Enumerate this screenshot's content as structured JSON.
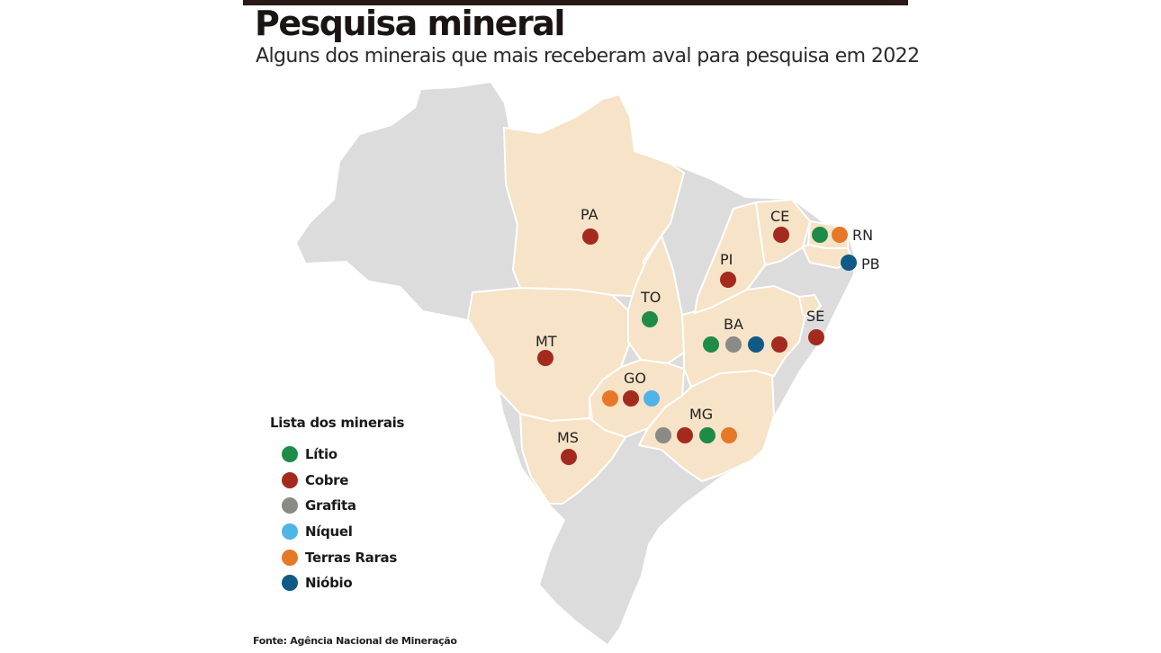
{
  "header": {
    "title": "Pesquisa mineral",
    "subtitle": "Alguns dos minerais que mais receberam aval para pesquisa em 2022"
  },
  "colors": {
    "highlight_state": "#f7e3c7",
    "other_state": "#dcdcdc",
    "border": "#ffffff"
  },
  "map": {
    "states": [
      {
        "abbr": "PA",
        "highlighted": true
      },
      {
        "abbr": "MT",
        "highlighted": true
      },
      {
        "abbr": "TO",
        "highlighted": true
      },
      {
        "abbr": "GO",
        "highlighted": true
      },
      {
        "abbr": "MS",
        "highlighted": true
      },
      {
        "abbr": "MG",
        "highlighted": true
      },
      {
        "abbr": "BA",
        "highlighted": true
      },
      {
        "abbr": "PI",
        "highlighted": true
      },
      {
        "abbr": "CE",
        "highlighted": true
      },
      {
        "abbr": "RN",
        "highlighted": true
      },
      {
        "abbr": "PB",
        "highlighted": true
      },
      {
        "abbr": "SE",
        "highlighted": true
      }
    ],
    "markers": [
      {
        "state": "PA",
        "minerals": [
          "Cobre"
        ]
      },
      {
        "state": "CE",
        "minerals": [
          "Cobre"
        ]
      },
      {
        "state": "RN",
        "minerals": [
          "Lítio",
          "Terras Raras"
        ]
      },
      {
        "state": "PB",
        "minerals": [
          "Nióbio"
        ]
      },
      {
        "state": "PI",
        "minerals": [
          "Cobre"
        ]
      },
      {
        "state": "TO",
        "minerals": [
          "Lítio"
        ]
      },
      {
        "state": "BA",
        "minerals": [
          "Lítio",
          "Grafita",
          "Nióbio",
          "Cobre"
        ]
      },
      {
        "state": "SE",
        "minerals": [
          "Cobre"
        ]
      },
      {
        "state": "MT",
        "minerals": [
          "Cobre"
        ]
      },
      {
        "state": "GO",
        "minerals": [
          "Terras Raras",
          "Cobre",
          "Níquel"
        ]
      },
      {
        "state": "MG",
        "minerals": [
          "Grafita",
          "Cobre",
          "Lítio",
          "Terras Raras"
        ]
      },
      {
        "state": "MS",
        "minerals": [
          "Cobre"
        ]
      }
    ]
  },
  "legend": {
    "title": "Lista dos minerais",
    "items": [
      {
        "label": "Lítio",
        "color": "#1e8c46",
        "icon": "green-dot-icon"
      },
      {
        "label": "Cobre",
        "color": "#a52a1e",
        "icon": "red-dot-icon"
      },
      {
        "label": "Grafita",
        "color": "#8a8a86",
        "icon": "gray-dot-icon"
      },
      {
        "label": "Níquel",
        "color": "#4fb4e6",
        "icon": "light-blue-dot-icon"
      },
      {
        "label": "Terras Raras",
        "color": "#e67828",
        "icon": "orange-dot-icon"
      },
      {
        "label": "Nióbio",
        "color": "#0f5a87",
        "icon": "dark-blue-dot-icon"
      }
    ]
  },
  "source": "Fonte: Agência Nacional de Mineração"
}
